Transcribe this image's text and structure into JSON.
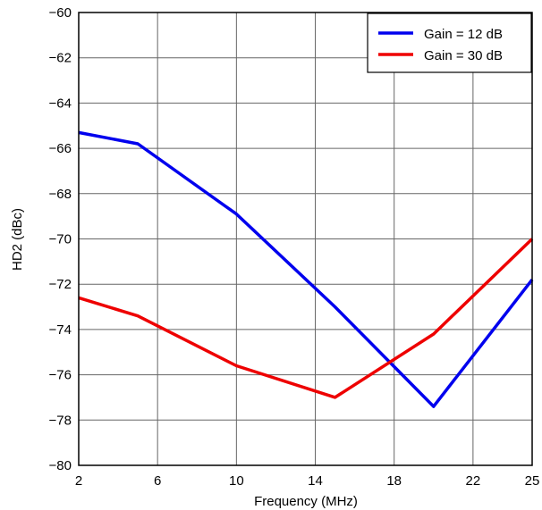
{
  "chart_data": {
    "type": "line",
    "xlabel": "Frequency (MHz)",
    "ylabel": "HD2 (dBc)",
    "xlim": [
      2,
      25
    ],
    "ylim": [
      -80,
      -60
    ],
    "xticks": [
      2,
      6,
      10,
      14,
      18,
      22,
      25
    ],
    "xtick_labels": [
      "2",
      "6",
      "10",
      "14",
      "18",
      "22",
      "25"
    ],
    "yticks": [
      -80,
      -78,
      -76,
      -74,
      -72,
      -70,
      -68,
      -66,
      -64,
      -62,
      -60
    ],
    "ytick_labels": [
      "−80",
      "−78",
      "−76",
      "−74",
      "−72",
      "−70",
      "−68",
      "−66",
      "−64",
      "−62",
      "−60"
    ],
    "grid": true,
    "legend_position": "top-right",
    "series": [
      {
        "name": "Gain = 12 dB",
        "color": "#0000ee",
        "x": [
          2,
          5,
          10,
          15,
          20,
          25
        ],
        "y": [
          -65.3,
          -65.8,
          -68.9,
          -73.0,
          -77.4,
          -71.8
        ]
      },
      {
        "name": "Gain = 30 dB",
        "color": "#ee0000",
        "x": [
          2,
          5,
          10,
          15,
          20,
          25
        ],
        "y": [
          -72.6,
          -73.4,
          -75.6,
          -77.0,
          -74.2,
          -70.0
        ]
      }
    ]
  }
}
